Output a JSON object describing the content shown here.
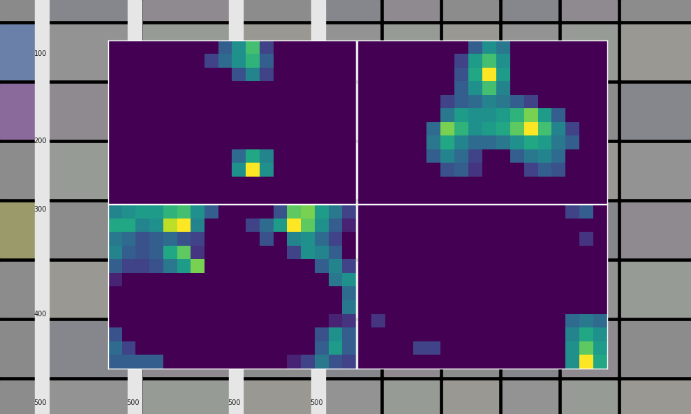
{
  "chart_data": [
    {
      "type": "heatmap",
      "color": "viridis",
      "tick_labels": false,
      "value_range": [
        0,
        1
      ],
      "cells": [
        [
          0,
          0,
          0,
          0,
          0,
          0,
          0,
          0,
          0.3,
          0.5,
          0.7,
          0.2,
          0,
          0,
          0,
          0,
          0,
          0
        ],
        [
          0,
          0,
          0,
          0,
          0,
          0,
          0,
          0.2,
          0.35,
          0.5,
          0.65,
          0.3,
          0,
          0,
          0,
          0,
          0,
          0
        ],
        [
          0,
          0,
          0,
          0,
          0,
          0,
          0,
          0,
          0,
          0.25,
          0.45,
          0.2,
          0,
          0,
          0,
          0,
          0,
          0
        ],
        [
          0,
          0,
          0,
          0,
          0,
          0,
          0,
          0,
          0,
          0,
          0,
          0,
          0,
          0,
          0,
          0,
          0,
          0
        ],
        [
          0,
          0,
          0,
          0,
          0,
          0,
          0,
          0,
          0,
          0,
          0,
          0,
          0,
          0,
          0,
          0,
          0,
          0
        ],
        [
          0,
          0,
          0,
          0,
          0,
          0,
          0,
          0,
          0,
          0,
          0,
          0,
          0,
          0,
          0,
          0,
          0,
          0
        ],
        [
          0,
          0,
          0,
          0,
          0,
          0,
          0,
          0,
          0,
          0,
          0,
          0,
          0,
          0,
          0,
          0,
          0,
          0
        ],
        [
          0,
          0,
          0,
          0,
          0,
          0,
          0,
          0,
          0,
          0,
          0,
          0,
          0,
          0,
          0,
          0,
          0,
          0
        ],
        [
          0,
          0,
          0,
          0,
          0,
          0,
          0,
          0,
          0,
          0.35,
          0.6,
          0.45,
          0,
          0,
          0,
          0,
          0,
          0
        ],
        [
          0,
          0,
          0,
          0,
          0,
          0,
          0,
          0,
          0,
          0.5,
          1.0,
          0.5,
          0,
          0,
          0,
          0,
          0,
          0
        ],
        [
          0,
          0,
          0,
          0,
          0,
          0,
          0,
          0,
          0,
          0,
          0,
          0,
          0,
          0,
          0,
          0,
          0,
          0
        ],
        [
          0,
          0,
          0,
          0,
          0,
          0,
          0,
          0,
          0,
          0,
          0,
          0,
          0,
          0,
          0,
          0,
          0,
          0
        ]
      ]
    },
    {
      "type": "heatmap",
      "color": "viridis",
      "tick_labels": false,
      "value_range": [
        0,
        1
      ],
      "cells": [
        [
          0,
          0,
          0,
          0,
          0,
          0,
          0,
          0,
          0.3,
          0.5,
          0.4,
          0,
          0,
          0,
          0,
          0,
          0,
          0
        ],
        [
          0,
          0,
          0,
          0,
          0,
          0,
          0,
          0.2,
          0.55,
          0.7,
          0.5,
          0,
          0,
          0,
          0,
          0,
          0,
          0
        ],
        [
          0,
          0,
          0,
          0,
          0,
          0,
          0,
          0.25,
          0.6,
          1.0,
          0.55,
          0,
          0,
          0,
          0,
          0,
          0,
          0
        ],
        [
          0,
          0,
          0,
          0,
          0,
          0,
          0,
          0.3,
          0.5,
          0.7,
          0.45,
          0,
          0,
          0,
          0,
          0,
          0,
          0
        ],
        [
          0,
          0,
          0,
          0,
          0,
          0,
          0.2,
          0.3,
          0.35,
          0.45,
          0.4,
          0.3,
          0.2,
          0,
          0,
          0,
          0,
          0
        ],
        [
          0,
          0,
          0,
          0,
          0,
          0,
          0.4,
          0.55,
          0.5,
          0.5,
          0.55,
          0.65,
          0.8,
          0.55,
          0.3,
          0,
          0,
          0
        ],
        [
          0,
          0,
          0,
          0,
          0,
          0.35,
          0.8,
          0.65,
          0.5,
          0.55,
          0.6,
          0.75,
          1.0,
          0.7,
          0.45,
          0.2,
          0,
          0
        ],
        [
          0,
          0,
          0,
          0,
          0,
          0.4,
          0.6,
          0.45,
          0.35,
          0.35,
          0.4,
          0.5,
          0.6,
          0.55,
          0.4,
          0.3,
          0,
          0
        ],
        [
          0,
          0,
          0,
          0,
          0,
          0.3,
          0.45,
          0.35,
          0.2,
          0,
          0,
          0.3,
          0.4,
          0.45,
          0.35,
          0,
          0,
          0
        ],
        [
          0,
          0,
          0,
          0,
          0,
          0,
          0.25,
          0.3,
          0.15,
          0,
          0,
          0,
          0.2,
          0.3,
          0.25,
          0,
          0,
          0
        ],
        [
          0,
          0,
          0,
          0,
          0,
          0,
          0,
          0,
          0,
          0,
          0,
          0,
          0,
          0,
          0,
          0,
          0,
          0
        ],
        [
          0,
          0,
          0,
          0,
          0,
          0,
          0,
          0,
          0,
          0,
          0,
          0,
          0,
          0,
          0,
          0,
          0,
          0
        ]
      ]
    },
    {
      "type": "heatmap",
      "color": "viridis",
      "tick_labels": false,
      "value_range": [
        0,
        1
      ],
      "cells": [
        [
          0.45,
          0.5,
          0.55,
          0.55,
          0.65,
          0.7,
          0.5,
          0.3,
          0,
          0,
          0,
          0,
          0.25,
          0.75,
          0.8,
          0.55,
          0.4,
          0.2
        ],
        [
          0.6,
          0.6,
          0.45,
          0.5,
          0.9,
          1.0,
          0.45,
          0,
          0,
          0,
          0.2,
          0.35,
          0.55,
          1.0,
          0.75,
          0.5,
          0.3,
          0.1
        ],
        [
          0.4,
          0.35,
          0.25,
          0.3,
          0.35,
          0.25,
          0.2,
          0,
          0,
          0,
          0,
          0.25,
          0,
          0.45,
          0.5,
          0.35,
          0.2,
          0
        ],
        [
          0.45,
          0.3,
          0.25,
          0.3,
          0.6,
          0.75,
          0.15,
          0,
          0,
          0,
          0,
          0,
          0,
          0.2,
          0.5,
          0.45,
          0.3,
          0
        ],
        [
          0.3,
          0.2,
          0.2,
          0.25,
          0.4,
          0.55,
          0.8,
          0,
          0,
          0,
          0,
          0,
          0,
          0,
          0,
          0.3,
          0.45,
          0.2
        ],
        [
          0.1,
          0,
          0,
          0,
          0,
          0,
          0,
          0,
          0,
          0,
          0,
          0,
          0,
          0,
          0,
          0,
          0.4,
          0.5
        ],
        [
          0,
          0,
          0,
          0,
          0,
          0,
          0,
          0,
          0,
          0,
          0,
          0,
          0,
          0,
          0,
          0,
          0,
          0.35
        ],
        [
          0,
          0,
          0,
          0,
          0,
          0,
          0,
          0,
          0,
          0,
          0,
          0,
          0,
          0,
          0,
          0,
          0,
          0.4
        ],
        [
          0,
          0,
          0,
          0,
          0,
          0,
          0,
          0,
          0,
          0,
          0,
          0,
          0,
          0,
          0,
          0,
          0.1,
          0.15
        ],
        [
          0.25,
          0,
          0,
          0,
          0,
          0,
          0,
          0,
          0,
          0,
          0,
          0,
          0,
          0,
          0,
          0.25,
          0.5,
          0.3
        ],
        [
          0.35,
          0.2,
          0,
          0,
          0,
          0,
          0,
          0,
          0,
          0,
          0,
          0,
          0,
          0,
          0,
          0.3,
          0.55,
          0.3
        ],
        [
          0.3,
          0.3,
          0.3,
          0.3,
          0,
          0,
          0,
          0,
          0,
          0,
          0,
          0,
          0,
          0.1,
          0.2,
          0.4,
          0.25,
          0.2
        ]
      ]
    },
    {
      "type": "heatmap",
      "color": "viridis",
      "tick_labels": false,
      "value_range": [
        0,
        1
      ],
      "cells": [
        [
          0,
          0,
          0,
          0,
          0,
          0,
          0,
          0,
          0,
          0,
          0,
          0,
          0,
          0,
          0,
          0.2,
          0.3,
          0
        ],
        [
          0,
          0,
          0,
          0,
          0,
          0,
          0,
          0,
          0,
          0,
          0,
          0,
          0,
          0,
          0,
          0,
          0,
          0
        ],
        [
          0,
          0,
          0,
          0,
          0,
          0,
          0,
          0,
          0,
          0,
          0,
          0,
          0,
          0,
          0,
          0,
          0.15,
          0
        ],
        [
          0,
          0,
          0,
          0,
          0,
          0,
          0,
          0,
          0,
          0,
          0,
          0,
          0,
          0,
          0,
          0,
          0,
          0
        ],
        [
          0,
          0,
          0,
          0,
          0,
          0,
          0,
          0,
          0,
          0,
          0,
          0,
          0,
          0,
          0,
          0,
          0,
          0
        ],
        [
          0,
          0,
          0,
          0,
          0,
          0,
          0,
          0,
          0,
          0,
          0,
          0,
          0,
          0,
          0,
          0,
          0,
          0
        ],
        [
          0,
          0,
          0,
          0,
          0,
          0,
          0,
          0,
          0,
          0,
          0,
          0,
          0,
          0,
          0,
          0,
          0,
          0
        ],
        [
          0,
          0,
          0,
          0,
          0,
          0,
          0,
          0,
          0,
          0,
          0,
          0,
          0,
          0,
          0,
          0,
          0,
          0
        ],
        [
          0,
          0.15,
          0,
          0,
          0,
          0,
          0,
          0,
          0,
          0,
          0,
          0,
          0,
          0,
          0,
          0.35,
          0.4,
          0.35
        ],
        [
          0,
          0,
          0,
          0,
          0,
          0,
          0,
          0,
          0,
          0,
          0,
          0,
          0,
          0,
          0,
          0.45,
          0.6,
          0.5
        ],
        [
          0,
          0,
          0,
          0,
          0.2,
          0.2,
          0,
          0,
          0,
          0,
          0,
          0,
          0,
          0,
          0,
          0.5,
          0.75,
          0.55
        ],
        [
          0,
          0,
          0,
          0,
          0,
          0,
          0,
          0,
          0,
          0,
          0,
          0,
          0,
          0,
          0,
          0.5,
          1.0,
          0.6
        ]
      ]
    }
  ],
  "background": {
    "columns": [
      {
        "yticks": [
          100,
          200,
          300,
          400,
          500
        ]
      },
      {
        "yticks": [
          500
        ]
      },
      {
        "yticks": [
          500
        ]
      },
      {
        "yticks": [
          500
        ]
      }
    ]
  }
}
